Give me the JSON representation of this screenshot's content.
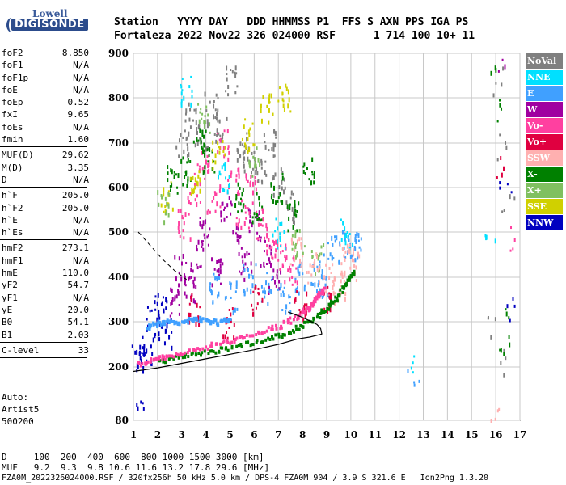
{
  "logo": {
    "line1": "Lowell",
    "line2": "DIGISONDE"
  },
  "header": {
    "labels": "Station   YYYY DAY   DDD HHMMSS P1  FFS S AXN PPS IGA PS",
    "values": "Fortaleza 2022 Nov22 326 024000 RSF      1 714 100 10+ 11"
  },
  "params_group1": [
    {
      "name": "foF2",
      "value": "8.850"
    },
    {
      "name": "foF1",
      "value": "N/A"
    },
    {
      "name": "foF1p",
      "value": "N/A"
    },
    {
      "name": "foE",
      "value": "N/A"
    },
    {
      "name": "foEp",
      "value": "0.52"
    },
    {
      "name": "fxI",
      "value": "9.65"
    },
    {
      "name": "foEs",
      "value": "N/A"
    },
    {
      "name": "fmin",
      "value": "1.60"
    }
  ],
  "params_group2": [
    {
      "name": "MUF(D)",
      "value": "29.62"
    },
    {
      "name": "M(D)",
      "value": "3.35"
    },
    {
      "name": "D",
      "value": "N/A"
    }
  ],
  "params_group3": [
    {
      "name": "h`F",
      "value": "205.0"
    },
    {
      "name": "h`F2",
      "value": "205.0"
    },
    {
      "name": "h`E",
      "value": "N/A"
    },
    {
      "name": "h`Es",
      "value": "N/A"
    }
  ],
  "params_group4": [
    {
      "name": "hmF2",
      "value": "273.1"
    },
    {
      "name": "hmF1",
      "value": "N/A"
    },
    {
      "name": "hmE",
      "value": "110.0"
    },
    {
      "name": "yF2",
      "value": "54.7"
    },
    {
      "name": "yF1",
      "value": "N/A"
    },
    {
      "name": "yE",
      "value": "20.0"
    },
    {
      "name": "B0",
      "value": "54.1"
    },
    {
      "name": "B1",
      "value": "2.03"
    }
  ],
  "params_group5": [
    {
      "name": "C-level",
      "value": "33"
    }
  ],
  "auto": {
    "line1": "Auto:",
    "line2": "Artist5",
    "line3": "500200"
  },
  "legend": [
    {
      "label": "NoVal",
      "color": "#808080"
    },
    {
      "label": "NNE",
      "color": "#00e0ff"
    },
    {
      "label": "E",
      "color": "#40a0ff"
    },
    {
      "label": "W",
      "color": "#a000a0"
    },
    {
      "label": "Vo-",
      "color": "#ff40a0"
    },
    {
      "label": "Vo+",
      "color": "#e00040"
    },
    {
      "label": "SSW",
      "color": "#ffb0b0"
    },
    {
      "label": "X-",
      "color": "#008000"
    },
    {
      "label": "X+",
      "color": "#80c060"
    },
    {
      "label": "SSE",
      "color": "#d0d000"
    },
    {
      "label": "NNW",
      "color": "#0000c0"
    }
  ],
  "bottom": {
    "d_line": "D     100  200  400  600  800 1000 1500 3000 [km]",
    "muf_line": "MUF   9.2  9.3  9.8 10.6 11.6 13.2 17.8 29.6 [MHz]",
    "footer": "FZA0M_2022326024000.RSF / 320fx256h 50 kHz 5.0 km / DPS-4 FZA0M 904 / 3.9 S 321.6 E   Ion2Png 1.3.20"
  },
  "chart_data": {
    "type": "scatter",
    "xlim": [
      1,
      17
    ],
    "ylim": [
      80,
      900
    ],
    "x_ticks": [
      1,
      2,
      3,
      4,
      5,
      6,
      7,
      8,
      9,
      10,
      11,
      12,
      13,
      14,
      15,
      16,
      17
    ],
    "y_ticks": [
      80,
      200,
      300,
      400,
      500,
      600,
      700,
      800,
      900
    ],
    "grid": true,
    "legend_placement": "right",
    "profile_curve": {
      "x": [
        1.0,
        2.0,
        3.0,
        4.0,
        5.0,
        6.0,
        7.0,
        7.8,
        8.3,
        8.6,
        8.75,
        8.8,
        8.75,
        8.6,
        8.3,
        7.9,
        7.4
      ],
      "y": [
        190,
        198,
        208,
        218,
        228,
        238,
        250,
        262,
        266,
        270,
        272,
        273.1,
        285,
        294,
        302,
        312,
        322
      ]
    },
    "dashed_curve": {
      "x": [
        1.2,
        1.7,
        2.2,
        2.7,
        3.2
      ],
      "y": [
        500,
        470,
        440,
        415,
        395
      ]
    },
    "trace_o": {
      "x": [
        1.2,
        1.8,
        2.5,
        3.5,
        4.5,
        5.5,
        6.5,
        7.3,
        7.9,
        8.3,
        8.6,
        8.9
      ],
      "y": [
        210,
        218,
        228,
        240,
        255,
        268,
        285,
        300,
        320,
        340,
        360,
        380
      ]
    },
    "trace_x": {
      "x": [
        2.0,
        3.0,
        4.0,
        5.0,
        6.0,
        7.0,
        7.8,
        8.5,
        9.0,
        9.4,
        9.8,
        10.1
      ],
      "y": [
        215,
        225,
        235,
        245,
        258,
        272,
        290,
        312,
        335,
        360,
        390,
        420
      ]
    },
    "trace_e": {
      "x": [
        1.5,
        2.0,
        2.5,
        3.0,
        3.5,
        4.0,
        4.5,
        5.0
      ],
      "y": [
        290,
        300,
        305,
        300,
        310,
        305,
        300,
        310
      ]
    },
    "scatter_points": [
      {
        "x": 1.2,
        "y": 220,
        "s": "NNW"
      },
      {
        "x": 1.5,
        "y": 240,
        "s": "NNW"
      },
      {
        "x": 1.8,
        "y": 300,
        "s": "NNW"
      },
      {
        "x": 2.1,
        "y": 330,
        "s": "NNW"
      },
      {
        "x": 2.3,
        "y": 280,
        "s": "NNW"
      },
      {
        "x": 1.3,
        "y": 90,
        "s": "NNW"
      },
      {
        "x": 2.6,
        "y": 350,
        "s": "W"
      },
      {
        "x": 2.9,
        "y": 420,
        "s": "W"
      },
      {
        "x": 3.3,
        "y": 380,
        "s": "W"
      },
      {
        "x": 3.6,
        "y": 450,
        "s": "W"
      },
      {
        "x": 4.0,
        "y": 500,
        "s": "W"
      },
      {
        "x": 4.4,
        "y": 420,
        "s": "W"
      },
      {
        "x": 4.8,
        "y": 560,
        "s": "W"
      },
      {
        "x": 5.2,
        "y": 480,
        "s": "W"
      },
      {
        "x": 5.6,
        "y": 430,
        "s": "W"
      },
      {
        "x": 6.0,
        "y": 520,
        "s": "W"
      },
      {
        "x": 6.4,
        "y": 460,
        "s": "W"
      },
      {
        "x": 6.8,
        "y": 400,
        "s": "W"
      },
      {
        "x": 3.1,
        "y": 520,
        "s": "Vo-"
      },
      {
        "x": 3.5,
        "y": 600,
        "s": "Vo-"
      },
      {
        "x": 3.9,
        "y": 650,
        "s": "Vo-"
      },
      {
        "x": 4.3,
        "y": 580,
        "s": "Vo-"
      },
      {
        "x": 4.7,
        "y": 700,
        "s": "Vo-"
      },
      {
        "x": 5.1,
        "y": 620,
        "s": "Vo-"
      },
      {
        "x": 5.5,
        "y": 540,
        "s": "Vo-"
      },
      {
        "x": 5.9,
        "y": 600,
        "s": "Vo-"
      },
      {
        "x": 6.3,
        "y": 520,
        "s": "Vo-"
      },
      {
        "x": 6.7,
        "y": 480,
        "s": "Vo-"
      },
      {
        "x": 7.1,
        "y": 440,
        "s": "Vo-"
      },
      {
        "x": 7.5,
        "y": 420,
        "s": "Vo-"
      },
      {
        "x": 3.0,
        "y": 700,
        "s": "NoVal"
      },
      {
        "x": 3.4,
        "y": 760,
        "s": "NoVal"
      },
      {
        "x": 3.8,
        "y": 720,
        "s": "NoVal"
      },
      {
        "x": 4.2,
        "y": 780,
        "s": "NoVal"
      },
      {
        "x": 4.6,
        "y": 740,
        "s": "NoVal"
      },
      {
        "x": 5.0,
        "y": 840,
        "s": "NoVal"
      },
      {
        "x": 5.4,
        "y": 700,
        "s": "NoVal"
      },
      {
        "x": 5.8,
        "y": 660,
        "s": "NoVal"
      },
      {
        "x": 6.2,
        "y": 640,
        "s": "NoVal"
      },
      {
        "x": 6.6,
        "y": 700,
        "s": "NoVal"
      },
      {
        "x": 7.0,
        "y": 620,
        "s": "NoVal"
      },
      {
        "x": 7.4,
        "y": 560,
        "s": "NoVal"
      },
      {
        "x": 2.6,
        "y": 620,
        "s": "X-"
      },
      {
        "x": 3.2,
        "y": 640,
        "s": "X-"
      },
      {
        "x": 3.7,
        "y": 700,
        "s": "X-"
      },
      {
        "x": 4.1,
        "y": 660,
        "s": "X-"
      },
      {
        "x": 5.3,
        "y": 580,
        "s": "X-"
      },
      {
        "x": 6.1,
        "y": 560,
        "s": "X-"
      },
      {
        "x": 6.9,
        "y": 600,
        "s": "X-"
      },
      {
        "x": 7.6,
        "y": 540,
        "s": "X-"
      },
      {
        "x": 8.2,
        "y": 640,
        "s": "X-"
      },
      {
        "x": 2.4,
        "y": 580,
        "s": "SSE"
      },
      {
        "x": 3.6,
        "y": 620,
        "s": "SSE"
      },
      {
        "x": 4.5,
        "y": 680,
        "s": "SSE"
      },
      {
        "x": 5.7,
        "y": 720,
        "s": "SSE"
      },
      {
        "x": 6.5,
        "y": 780,
        "s": "SSE"
      },
      {
        "x": 7.2,
        "y": 800,
        "s": "SSE"
      },
      {
        "x": 2.2,
        "y": 560,
        "s": "X+"
      },
      {
        "x": 3.9,
        "y": 760,
        "s": "X+"
      },
      {
        "x": 6.0,
        "y": 660,
        "s": "X+"
      },
      {
        "x": 7.8,
        "y": 480,
        "s": "X+"
      },
      {
        "x": 8.6,
        "y": 440,
        "s": "X+"
      },
      {
        "x": 4.3,
        "y": 380,
        "s": "E"
      },
      {
        "x": 5.0,
        "y": 360,
        "s": "E"
      },
      {
        "x": 5.8,
        "y": 400,
        "s": "E"
      },
      {
        "x": 6.5,
        "y": 380,
        "s": "E"
      },
      {
        "x": 7.2,
        "y": 360,
        "s": "E"
      },
      {
        "x": 7.9,
        "y": 400,
        "s": "E"
      },
      {
        "x": 8.6,
        "y": 420,
        "s": "E"
      },
      {
        "x": 9.3,
        "y": 460,
        "s": "E"
      },
      {
        "x": 9.9,
        "y": 480,
        "s": "E"
      },
      {
        "x": 10.2,
        "y": 470,
        "s": "E"
      },
      {
        "x": 8.8,
        "y": 380,
        "s": "E"
      },
      {
        "x": 3.2,
        "y": 820,
        "s": "NNE"
      },
      {
        "x": 4.7,
        "y": 630,
        "s": "NNE"
      },
      {
        "x": 7.0,
        "y": 500,
        "s": "NNE"
      },
      {
        "x": 9.8,
        "y": 500,
        "s": "NNE"
      },
      {
        "x": 12.6,
        "y": 205,
        "s": "NNE"
      },
      {
        "x": 15.8,
        "y": 520,
        "s": "NNE"
      },
      {
        "x": 7.7,
        "y": 460,
        "s": "SSW"
      },
      {
        "x": 8.4,
        "y": 420,
        "s": "SSW"
      },
      {
        "x": 9.1,
        "y": 400,
        "s": "SSW"
      },
      {
        "x": 9.7,
        "y": 440,
        "s": "SSW"
      },
      {
        "x": 10.1,
        "y": 430,
        "s": "SSW"
      },
      {
        "x": 9.5,
        "y": 380,
        "s": "SSW"
      },
      {
        "x": 3.5,
        "y": 330,
        "s": "Vo+"
      },
      {
        "x": 4.9,
        "y": 300,
        "s": "Vo+"
      },
      {
        "x": 6.1,
        "y": 350,
        "s": "Vo+"
      },
      {
        "x": 7.9,
        "y": 340,
        "s": "Vo+"
      },
      {
        "x": 9.0,
        "y": 360,
        "s": "Vo+"
      },
      {
        "x": 16.2,
        "y": 640,
        "s": "Vo+"
      },
      {
        "x": 16.0,
        "y": 880,
        "s": "X-"
      },
      {
        "x": 16.1,
        "y": 780,
        "s": "X-"
      },
      {
        "x": 16.3,
        "y": 300,
        "s": "X-"
      },
      {
        "x": 16.4,
        "y": 260,
        "s": "X-"
      },
      {
        "x": 16.0,
        "y": 840,
        "s": "NoVal"
      },
      {
        "x": 16.3,
        "y": 700,
        "s": "NoVal"
      },
      {
        "x": 16.5,
        "y": 560,
        "s": "NoVal"
      },
      {
        "x": 16.2,
        "y": 880,
        "s": "W"
      },
      {
        "x": 16.5,
        "y": 480,
        "s": "Vo-"
      },
      {
        "x": 16.1,
        "y": 210,
        "s": "NoVal"
      },
      {
        "x": 16.6,
        "y": 340,
        "s": "NNW"
      },
      {
        "x": 16.4,
        "y": 620,
        "s": "NNW"
      },
      {
        "x": 16.0,
        "y": 100,
        "s": "SSW"
      },
      {
        "x": 12.6,
        "y": 190,
        "s": "E"
      },
      {
        "x": 15.8,
        "y": 280,
        "s": "NoVal"
      }
    ]
  }
}
